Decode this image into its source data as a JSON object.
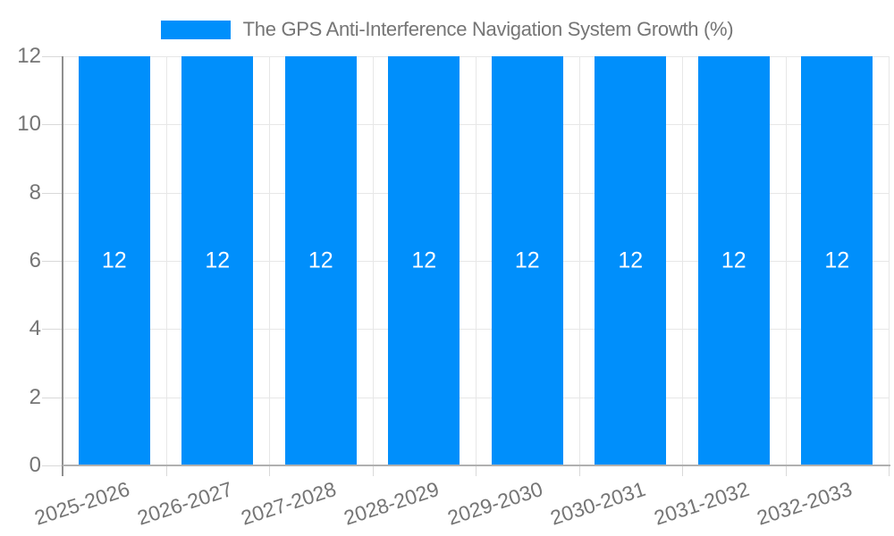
{
  "legend": {
    "series_label": "The GPS Anti-Interference Navigation System Growth (%)"
  },
  "chart_data": {
    "type": "bar",
    "title": "The GPS Anti-Interference Navigation System Growth (%)",
    "categories": [
      "2025-2026",
      "2026-2027",
      "2027-2028",
      "2028-2029",
      "2029-2030",
      "2030-2031",
      "2031-2032",
      "2032-2033"
    ],
    "values": [
      12,
      12,
      12,
      12,
      12,
      12,
      12,
      12
    ],
    "value_labels": [
      "12",
      "12",
      "12",
      "12",
      "12",
      "12",
      "12",
      "12"
    ],
    "xlabel": "",
    "ylabel": "",
    "ylim": [
      0,
      12
    ],
    "yticks": [
      0,
      2,
      4,
      6,
      8,
      10,
      12
    ],
    "grid": "horizontal and vertical light gray gridlines",
    "legend_position": "top-center",
    "colors": {
      "bar": "#008FFB",
      "value_label": "#ffffff",
      "axis_text": "#757575",
      "gridline": "#e7e7e7",
      "y_axis_line": "#8f8f8f",
      "x_axis_line": "#b0b0b0",
      "background": "#ffffff"
    }
  }
}
